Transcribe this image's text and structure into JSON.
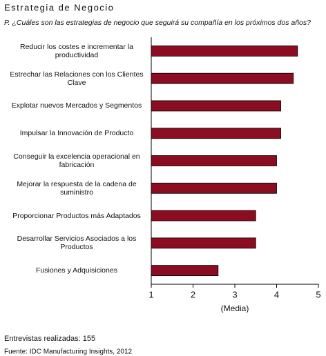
{
  "chart_data": {
    "type": "bar",
    "orientation": "horizontal",
    "title": "Estrategia de Negocio",
    "subtitle": "P. ¿Cuáles son las estrategias de negocio que seguirá su compañía en los próximos dos años?",
    "categories": [
      "Reducir los costes e incrementar la productividad",
      "Estrechar las Relaciones con los Clientes Clave",
      "Explotar nuevos Mercados y Segmentos",
      "Impulsar la Innovación de Producto",
      "Conseguir la excelencia operacional en fabricación",
      "Mejorar la respuesta de la cadena de suministro",
      "Proporcionar Productos más Adaptados",
      "Desarrollar Servicios Asociados a los Productos",
      "Fusiones y Adquisiciones"
    ],
    "values": [
      4.5,
      4.4,
      4.1,
      4.1,
      4.0,
      4.0,
      3.5,
      3.5,
      2.6
    ],
    "color": "#8b0d22",
    "xlim": [
      1,
      5
    ],
    "xticks": [
      1,
      2,
      3,
      4,
      5
    ],
    "x_label": "(Media)",
    "notes": [
      "Entrevistas realizadas: 155",
      "Fuente: IDC Manufacturing Insights, 2012"
    ]
  }
}
